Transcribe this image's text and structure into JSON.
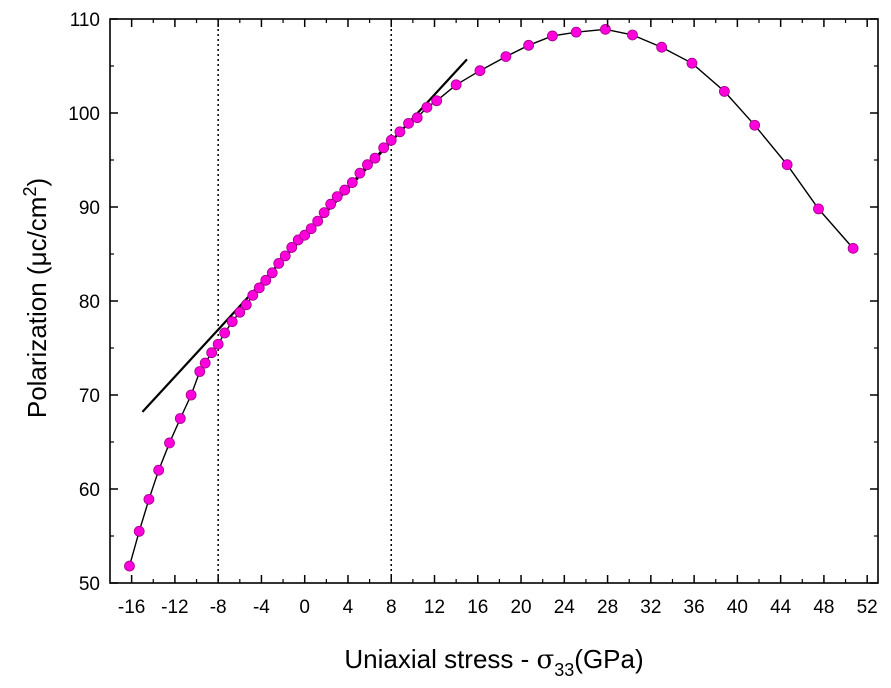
{
  "chart_data": {
    "type": "scatter",
    "xlabel": {
      "pre": "Uniaxial stress  - ",
      "symbol": "σ",
      "subscript": "33",
      "post": "(GPa)"
    },
    "ylabel": {
      "pre": "Polarization (μc/cm",
      "superscript": "2",
      "post": ")"
    },
    "xlim": [
      -18,
      53
    ],
    "ylim": [
      50,
      110
    ],
    "x_ticks": [
      -16,
      -12,
      -8,
      -4,
      0,
      4,
      8,
      12,
      16,
      20,
      24,
      28,
      32,
      36,
      40,
      44,
      48,
      52
    ],
    "x_tick_labels": [
      "-16",
      "-12",
      "-8",
      "-4",
      "0",
      "4",
      "8",
      "12",
      "16",
      "20",
      "24",
      "28",
      "32",
      "36",
      "40",
      "44",
      "48",
      "52"
    ],
    "y_ticks": [
      50,
      60,
      70,
      80,
      90,
      100,
      110
    ],
    "y_tick_labels": [
      "50",
      "60",
      "70",
      "80",
      "90",
      "100",
      "110"
    ],
    "grid": false,
    "series": [
      {
        "marker_color": "#ff00dd",
        "line_color": "#000000",
        "x": [
          -16.2,
          -15.3,
          -14.4,
          -13.5,
          -12.5,
          -11.5,
          -10.5,
          -9.7,
          -9.2,
          -8.6,
          -8.0,
          -7.4,
          -6.7,
          -6.0,
          -5.4,
          -4.8,
          -4.2,
          -3.6,
          -3.0,
          -2.4,
          -1.8,
          -1.2,
          -0.6,
          0.0,
          0.6,
          1.2,
          1.8,
          2.4,
          3.0,
          3.7,
          4.4,
          5.1,
          5.8,
          6.5,
          7.3,
          8.0,
          8.8,
          9.6,
          10.4,
          11.3,
          12.2,
          14.0,
          16.2,
          18.6,
          20.7,
          22.9,
          25.1,
          27.8,
          30.3,
          33.0,
          35.8,
          38.8,
          41.6,
          44.6,
          47.5,
          50.7
        ],
        "y": [
          51.8,
          55.5,
          58.9,
          62.0,
          64.9,
          67.5,
          70.0,
          72.5,
          73.4,
          74.5,
          75.4,
          76.6,
          77.8,
          78.8,
          79.6,
          80.6,
          81.4,
          82.2,
          83.0,
          84.0,
          84.8,
          85.7,
          86.5,
          87.0,
          87.7,
          88.5,
          89.4,
          90.3,
          91.1,
          91.8,
          92.6,
          93.6,
          94.5,
          95.2,
          96.3,
          97.1,
          98.0,
          98.9,
          99.5,
          100.6,
          101.3,
          103.0,
          104.5,
          106.0,
          107.2,
          108.2,
          108.6,
          108.9,
          108.3,
          107.0,
          105.3,
          102.3,
          98.7,
          94.5,
          89.8,
          85.6
        ]
      }
    ],
    "reference_lines": {
      "linear_fit": {
        "x": [
          -15,
          15
        ],
        "y": [
          68.2,
          105.7
        ],
        "color": "#000000"
      },
      "vertical_dotted": [
        -8,
        8
      ]
    }
  }
}
